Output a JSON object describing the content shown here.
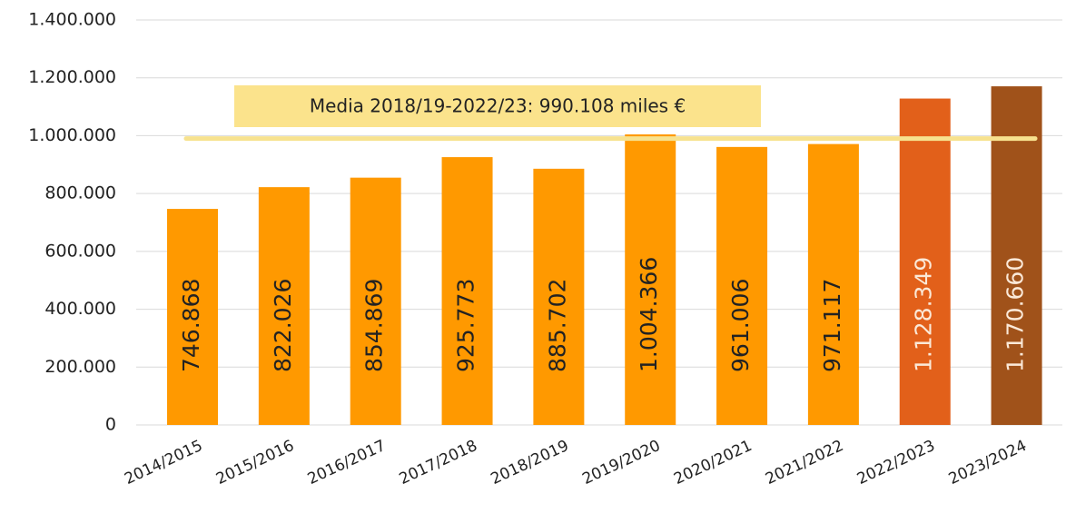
{
  "chart_data": {
    "type": "bar",
    "categories": [
      "2014/2015",
      "2015/2016",
      "2016/2017",
      "2017/2018",
      "2018/2019",
      "2019/2020",
      "2020/2021",
      "2021/2022",
      "2022/2023",
      "2023/2024"
    ],
    "values": [
      746868,
      822026,
      854869,
      925773,
      885702,
      1004366,
      961006,
      971117,
      1128349,
      1170660
    ],
    "value_labels": [
      "746.868",
      "822.026",
      "854.869",
      "925.773",
      "885.702",
      "1.004.366",
      "961.006",
      "971.117",
      "1.128.349",
      "1.170.660"
    ],
    "colors": [
      "#ff9900",
      "#ff9900",
      "#ff9900",
      "#ff9900",
      "#ff9900",
      "#ff9900",
      "#ff9900",
      "#ff9900",
      "#e2601a",
      "#a0521a"
    ],
    "ylim": [
      0,
      1400000
    ],
    "yticks": [
      {
        "value": 0,
        "label": "0"
      },
      {
        "value": 200000,
        "label": "200.000"
      },
      {
        "value": 400000,
        "label": "400.000"
      },
      {
        "value": 600000,
        "label": "600.000"
      },
      {
        "value": 800000,
        "label": "800.000"
      },
      {
        "value": 1000000,
        "label": "1.000.000"
      },
      {
        "value": 1200000,
        "label": "1.200.000"
      },
      {
        "value": 1400000,
        "label": "1.400.000"
      }
    ],
    "grid": true,
    "reference_line": {
      "value": 990108,
      "label": "Media 2018/19-2022/23: 990.108 miles €",
      "color": "#f7e28f"
    }
  }
}
